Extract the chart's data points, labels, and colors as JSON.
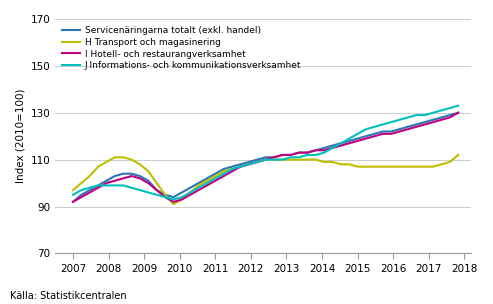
{
  "title": "",
  "ylabel": "Index (2010=100)",
  "source": "Källa: Statistikcentralen",
  "ylim": [
    70,
    170
  ],
  "yticks": [
    70,
    90,
    110,
    130,
    150,
    170
  ],
  "xlim": [
    2006.5,
    2018.2
  ],
  "xticks": [
    2007,
    2008,
    2009,
    2010,
    2011,
    2012,
    2013,
    2014,
    2015,
    2016,
    2017,
    2018
  ],
  "legend_labels": [
    "Servicenäringarna totalt (exkl. handel)",
    "H Transport och magasinering",
    "I Hotell- och restaurangverksamhet",
    "J Informations- och kommunikationsverksamhet"
  ],
  "colors": [
    "#2E75B6",
    "#BFBF00",
    "#C00080",
    "#00BFBF"
  ],
  "linewidth": 1.5,
  "series_A": [
    92,
    95,
    97,
    99,
    101,
    103,
    104,
    104,
    103,
    101,
    97,
    95,
    94,
    96,
    98,
    100,
    102,
    104,
    106,
    107,
    108,
    109,
    110,
    111,
    111,
    112,
    112,
    113,
    113,
    114,
    115,
    116,
    117,
    118,
    119,
    120,
    121,
    122,
    122,
    123,
    124,
    125,
    126,
    127,
    128,
    129,
    130
  ],
  "series_B": [
    97,
    100,
    103,
    107,
    109,
    111,
    111,
    110,
    108,
    105,
    100,
    95,
    91,
    93,
    96,
    99,
    101,
    103,
    105,
    106,
    107,
    108,
    109,
    110,
    110,
    110,
    110,
    110,
    110,
    110,
    109,
    109,
    108,
    108,
    107,
    107,
    107,
    107,
    107,
    107,
    107,
    107,
    107,
    107,
    108,
    109,
    112
  ],
  "series_C": [
    92,
    94,
    96,
    98,
    100,
    101,
    102,
    103,
    102,
    100,
    97,
    94,
    92,
    93,
    95,
    97,
    99,
    101,
    103,
    105,
    107,
    108,
    109,
    110,
    111,
    112,
    112,
    113,
    113,
    114,
    114,
    115,
    116,
    117,
    118,
    119,
    120,
    121,
    121,
    122,
    123,
    124,
    125,
    126,
    127,
    128,
    130
  ],
  "series_D": [
    95,
    97,
    98,
    99,
    99,
    99,
    99,
    98,
    97,
    96,
    95,
    94,
    93,
    94,
    96,
    98,
    100,
    102,
    104,
    106,
    107,
    108,
    109,
    110,
    110,
    110,
    111,
    111,
    112,
    112,
    113,
    115,
    117,
    119,
    121,
    123,
    124,
    125,
    126,
    127,
    128,
    129,
    129,
    130,
    131,
    132,
    133
  ],
  "background_color": "#FFFFFF",
  "grid_color": "#CCCCCC"
}
